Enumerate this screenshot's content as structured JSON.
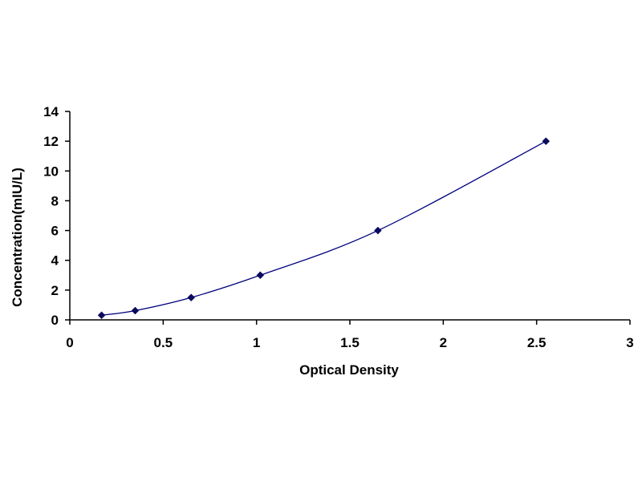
{
  "chart_data": {
    "type": "line",
    "title": "",
    "xlabel": "Optical Density",
    "ylabel": "Concentration(mIU/L)",
    "xlim": [
      0,
      3
    ],
    "ylim": [
      0,
      14
    ],
    "x_ticks": [
      "0",
      "0.5",
      "1",
      "1.5",
      "2",
      "2.5",
      "3"
    ],
    "y_ticks": [
      "0",
      "2",
      "4",
      "6",
      "8",
      "10",
      "12",
      "14"
    ],
    "grid": false,
    "legend": "none",
    "marker": "diamond",
    "line_color": "#00007f",
    "marker_color": "#0a0a5e",
    "series": [
      {
        "x": [
          0.17,
          0.35,
          0.65,
          1.02,
          1.65,
          2.55
        ],
        "y": [
          0.31,
          0.62,
          1.5,
          3,
          6,
          12
        ]
      }
    ]
  }
}
